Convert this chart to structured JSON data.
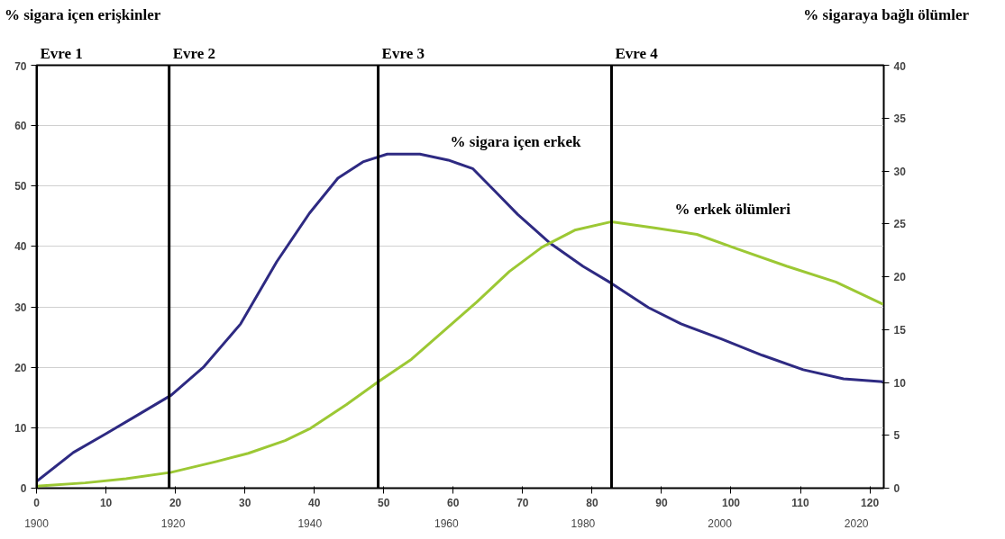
{
  "chart_data": {
    "type": "line",
    "xlabel": null,
    "ylabel": "% sigara içen erişkinler",
    "y2label": "% sigaraya bağlı ölümler",
    "xlim": [
      0,
      122
    ],
    "xticks": [
      0,
      10,
      20,
      30,
      40,
      50,
      60,
      70,
      80,
      90,
      100,
      110,
      120
    ],
    "x2lim": [
      1900,
      2024
    ],
    "x2ticks": [
      1900,
      1920,
      1940,
      1960,
      1980,
      2000,
      2020
    ],
    "ylim": [
      0,
      70
    ],
    "yticks": [
      0,
      10,
      20,
      30,
      40,
      50,
      60,
      70
    ],
    "y2lim": [
      0,
      40
    ],
    "y2ticks": [
      0,
      5,
      10,
      15,
      20,
      25,
      30,
      35,
      40
    ],
    "grid": "y",
    "legend": false,
    "marker": "none",
    "line_style": "solid",
    "series": [
      {
        "name": "% sigara içen erkek",
        "color": "#2e2a82",
        "x": [
          0,
          5.3,
          10,
          14.7,
          19.4,
          24.1,
          29.4,
          34.6,
          39.3,
          43.4,
          47,
          50.5,
          55.2,
          59.3,
          62.8,
          65.8,
          69.3,
          74,
          78.7,
          82.8,
          88.1,
          92.8,
          98.6,
          104.5,
          110.4,
          116.2,
          121.9
        ],
        "values": [
          1.1,
          5.9,
          9,
          12.2,
          15.4,
          20.1,
          27.2,
          37.5,
          45.5,
          51.3,
          54,
          55.3,
          55.3,
          54.3,
          52.9,
          49.4,
          45.3,
          40.5,
          36.7,
          33.9,
          29.9,
          27.2,
          24.7,
          22,
          19.6,
          18.1,
          17.6
        ]
      },
      {
        "name": "% erkek ölümleri",
        "color": "#9cc834",
        "axis": "y2",
        "x": [
          0,
          7,
          12.9,
          19.4,
          25.8,
          30.5,
          35.8,
          39.3,
          44.6,
          49.3,
          54,
          58.7,
          63.4,
          68.1,
          72.8,
          77.5,
          82.8,
          89.2,
          95.1,
          101,
          108,
          115.1,
          121.9
        ],
        "values": [
          0.2,
          0.5,
          0.9,
          1.5,
          2.5,
          3.3,
          4.5,
          5.6,
          7.9,
          10.1,
          12.2,
          14.9,
          17.6,
          20.5,
          22.8,
          24.4,
          25.2,
          24.6,
          24,
          22.6,
          21,
          19.5,
          17.4
        ]
      }
    ],
    "ref_lines": [
      {
        "axis": "x",
        "value": 0,
        "label": "Evre 1",
        "color": "#000000"
      },
      {
        "axis": "x",
        "value": 19.1,
        "label": "Evre 2",
        "color": "#000000"
      },
      {
        "axis": "x",
        "value": 49.2,
        "label": "Evre 3",
        "color": "#000000"
      },
      {
        "axis": "x",
        "value": 82.8,
        "label": "Evre 4",
        "color": "#000000"
      }
    ]
  }
}
